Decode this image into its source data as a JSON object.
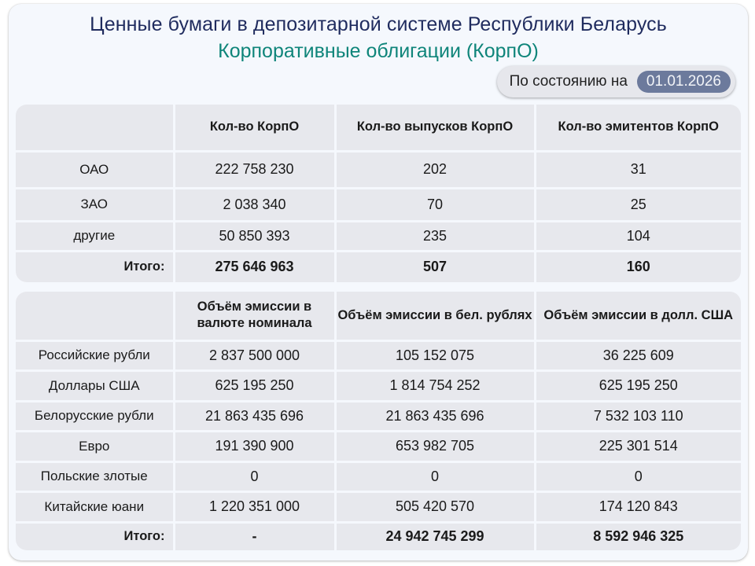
{
  "header": {
    "title": "Ценные бумаги в депозитарной системе Республики Беларусь",
    "subtitle": "Корпоративные облигации (КорпО)",
    "as_of_label": "По состоянию на",
    "as_of_date": "01.01.2026"
  },
  "colors": {
    "title": "#1f2b5e",
    "subtitle": "#0f857a",
    "date_badge": "#6c7a9c",
    "table_bg": "#e7e8ed",
    "card_bg": "#f5f8fd"
  },
  "table1": {
    "columns": [
      "",
      "Кол-во КорпО",
      "Кол-во выпусков КорпО",
      "Кол-во эмитентов КорпО"
    ],
    "rows": [
      {
        "label": "ОАО",
        "values": [
          "222 758 230",
          "202",
          "31"
        ]
      },
      {
        "label": "ЗАО",
        "values": [
          "2 038 340",
          "70",
          "25"
        ]
      },
      {
        "label": "другие",
        "values": [
          "50 850 393",
          "235",
          "104"
        ]
      }
    ],
    "total": {
      "label": "Итого:",
      "values": [
        "275 646 963",
        "507",
        "160"
      ]
    }
  },
  "table2": {
    "columns": [
      "",
      "Объём эмиссии в валюте номинала",
      "Объём эмиссии в бел. рублях",
      "Объём эмиссии в долл. США"
    ],
    "rows": [
      {
        "label": "Российские рубли",
        "values": [
          "2 837 500 000",
          "105 152 075",
          "36 225 609"
        ]
      },
      {
        "label": "Доллары США",
        "values": [
          "625 195 250",
          "1 814 754 252",
          "625 195 250"
        ]
      },
      {
        "label": "Белорусские рубли",
        "values": [
          "21 863 435 696",
          "21 863 435 696",
          "7 532 103 110"
        ]
      },
      {
        "label": "Евро",
        "values": [
          "191 390 900",
          "653 982 705",
          "225 301 514"
        ]
      },
      {
        "label": "Польские злотые",
        "values": [
          "0",
          "0",
          "0"
        ]
      },
      {
        "label": "Китайские юани",
        "values": [
          "1 220 351 000",
          "505 420 570",
          "174 120 843"
        ]
      }
    ],
    "total": {
      "label": "Итого:",
      "values": [
        "-",
        "24 942 745 299",
        "8 592 946 325"
      ]
    }
  }
}
